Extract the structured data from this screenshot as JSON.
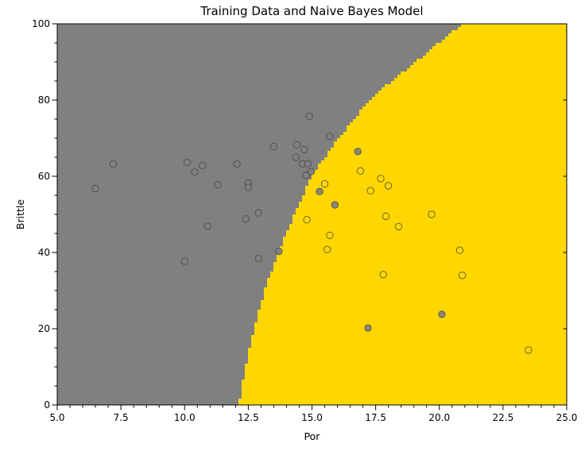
{
  "chart_data": {
    "type": "scatter",
    "title": "Training Data and Naive Bayes Model",
    "xlabel": "Por",
    "ylabel": "Brittle",
    "xlim": [
      5,
      25
    ],
    "ylim": [
      0,
      100
    ],
    "x_major_ticks": [
      5.0,
      7.5,
      10.0,
      12.5,
      15.0,
      17.5,
      20.0,
      22.5,
      25.0
    ],
    "x_tick_labels": [
      "5.0",
      "7.5",
      "10.0",
      "12.5",
      "15.0",
      "17.5",
      "20.0",
      "22.5",
      "25.0"
    ],
    "x_minor_step": 0.5,
    "y_major_ticks": [
      0,
      20,
      40,
      60,
      80,
      100
    ],
    "y_tick_labels": [
      "0",
      "20",
      "40",
      "60",
      "80",
      "100"
    ],
    "y_minor_step": 5,
    "grid": false,
    "legend": "none",
    "regions": {
      "low_region_color": "#808080",
      "high_region_color": "#FFD700",
      "description": "Naive Bayes decision regions: grey = low class (left), gold = high class (right)"
    },
    "decision_boundary": {
      "description": "Boundary Por value as a function of Brittle (grey left of curve, gold right of curve), rendered as coarse pixel steps",
      "points": [
        {
          "brittle": 0,
          "por": 12.15
        },
        {
          "brittle": 10,
          "por": 12.4
        },
        {
          "brittle": 20,
          "por": 12.75
        },
        {
          "brittle": 30,
          "por": 13.15
        },
        {
          "brittle": 40,
          "por": 13.7
        },
        {
          "brittle": 45,
          "por": 14.0
        },
        {
          "brittle": 50,
          "por": 14.35
        },
        {
          "brittle": 60,
          "por": 15.0
        },
        {
          "brittle": 65,
          "por": 15.55
        },
        {
          "brittle": 70,
          "por": 16.1
        },
        {
          "brittle": 75,
          "por": 16.7
        },
        {
          "brittle": 80,
          "por": 17.35
        },
        {
          "brittle": 85,
          "por": 18.2
        },
        {
          "brittle": 90,
          "por": 19.15
        },
        {
          "brittle": 95,
          "por": 20.05
        },
        {
          "brittle": 100,
          "por": 21.0
        }
      ]
    },
    "marker": {
      "radius_px": 4.2,
      "edge_color": "rgba(70,70,70,0.8)",
      "fill_alpha": 0.92
    },
    "series": [
      {
        "name": "grey-class training points",
        "fill_color": "#808080",
        "points": [
          [
            6.5,
            56.8
          ],
          [
            7.2,
            63.2
          ],
          [
            10.0,
            37.7
          ],
          [
            10.1,
            63.6
          ],
          [
            10.4,
            61.1
          ],
          [
            10.7,
            62.8
          ],
          [
            10.9,
            46.9
          ],
          [
            11.3,
            57.8
          ],
          [
            12.05,
            63.2
          ],
          [
            12.4,
            48.8
          ],
          [
            12.5,
            58.2
          ],
          [
            12.5,
            57.1
          ],
          [
            12.9,
            50.4
          ],
          [
            12.9,
            38.4
          ],
          [
            13.5,
            67.8
          ],
          [
            13.7,
            40.3
          ],
          [
            14.37,
            65.0
          ],
          [
            14.4,
            68.3
          ],
          [
            14.7,
            67.0
          ],
          [
            14.63,
            63.3
          ],
          [
            14.84,
            63.3
          ],
          [
            14.77,
            60.2
          ],
          [
            14.97,
            61.2
          ],
          [
            14.9,
            75.7
          ],
          [
            15.7,
            70.5
          ],
          [
            15.3,
            56.0
          ],
          [
            15.9,
            52.5
          ],
          [
            16.8,
            66.5
          ],
          [
            17.2,
            20.2
          ],
          [
            20.1,
            23.8
          ]
        ]
      },
      {
        "name": "gold-class training points",
        "fill_color": "#FFD700",
        "points": [
          [
            14.8,
            48.6
          ],
          [
            15.5,
            58.0
          ],
          [
            15.6,
            40.8
          ],
          [
            15.7,
            44.5
          ],
          [
            16.9,
            61.4
          ],
          [
            17.3,
            56.2
          ],
          [
            17.7,
            59.4
          ],
          [
            17.8,
            34.2
          ],
          [
            17.9,
            49.5
          ],
          [
            18.0,
            57.5
          ],
          [
            18.4,
            46.8
          ],
          [
            19.7,
            50.0
          ],
          [
            20.8,
            40.6
          ],
          [
            20.9,
            34.0
          ],
          [
            23.5,
            14.4
          ]
        ]
      }
    ]
  }
}
